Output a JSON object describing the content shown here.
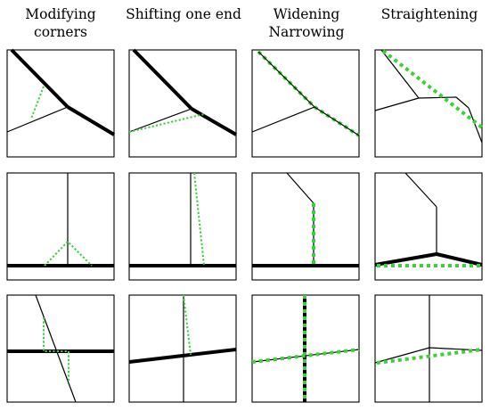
{
  "columns": [
    {
      "title_lines": [
        "Modifying",
        "corners"
      ]
    },
    {
      "title_lines": [
        "Shifting one end",
        ""
      ]
    },
    {
      "title_lines": [
        "Widening",
        "Narrowing"
      ]
    },
    {
      "title_lines": [
        "Straightening",
        ""
      ]
    }
  ],
  "colors": {
    "road": "#000000",
    "guide": "#3ad13a",
    "frame": "#000000",
    "background": "#ffffff"
  }
}
